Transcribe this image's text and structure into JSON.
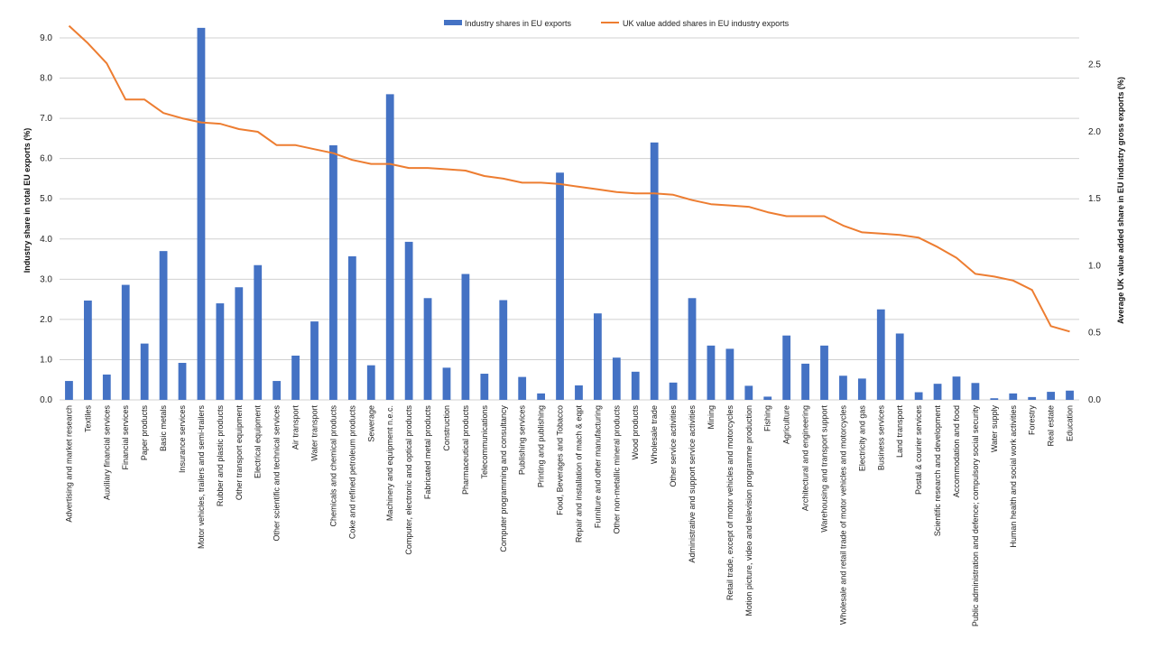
{
  "chart_data": {
    "type": "bar",
    "title": "",
    "ylabel": "Industry share in total EU exports (%)",
    "y2label": "Average UK value added share in EU industry gross exports (%)",
    "ylim": [
      0,
      10
    ],
    "y2lim": [
      0,
      3.0
    ],
    "yticks": [
      "0.0",
      "1.0",
      "2.0",
      "3.0",
      "4.0",
      "5.0",
      "6.0",
      "7.0",
      "8.0",
      "9.0"
    ],
    "y2ticks": [
      "0.0",
      "0.5",
      "1.0",
      "1.5",
      "2.0",
      "2.5"
    ],
    "grid": true,
    "legend_position": "top-center",
    "colors": {
      "bar": "#4472c4",
      "line": "#ed7d31",
      "grid": "#d0d0d0"
    },
    "categories": [
      "Advertising and market research",
      "Textiles",
      "Auxiliary financial services",
      "Financial services",
      "Paper products",
      "Basic metals",
      "Insurance services",
      "Motor vehicles, trailers and semi-trailers",
      "Rubber and plastic products",
      "Other transport equipment",
      "Electrical equipment",
      "Other scientific and technical services",
      "Air transport",
      "Water transport",
      "Chemicals and chemical products",
      "Coke and refined petroleum products",
      "Sewerage",
      "Machinery and equipment n.e.c.",
      "Computer, electronic and optical products",
      "Fabricated metal products",
      "Construction",
      "Pharmaceutical products",
      "Telecommunications",
      "Computer programming and consultancy",
      "Publishing services",
      "Printing and publishing",
      "Food, Beverages and Tobacco",
      "Repair and installation of mach & eqpt",
      "Furniture and other manufacturing",
      "Other non-metallic mineral products",
      "Wood products",
      "Wholesale trade",
      "Other service activities",
      "Administrative and support service activities",
      "Mining",
      "Retail trade, except of motor vehicles and motorcycles",
      "Motion picture, video and television programme production",
      "Fishing",
      "Agriculture",
      "Architectural and engineering",
      "Warehousing and transport support",
      "Wholesale and retail trade of motor vehicles and motorcycles",
      "Electricity and gas",
      "Business services",
      "Land transport",
      "Postal & courier services",
      "Scientific research and development",
      "Accommodation and food",
      "Public administration and defence; compulsory social security",
      "Water supply",
      "Human health and social work activities",
      "Forestry",
      "Real estate",
      "Education"
    ],
    "series": [
      {
        "name": "Industry shares in EU exports",
        "kind": "bar",
        "axis": "left",
        "values": [
          0.47,
          2.47,
          0.63,
          2.86,
          1.4,
          3.7,
          0.92,
          9.25,
          2.4,
          2.8,
          3.35,
          0.47,
          1.1,
          1.95,
          6.33,
          3.57,
          0.86,
          7.6,
          3.93,
          2.53,
          0.8,
          3.13,
          0.65,
          2.48,
          0.57,
          0.16,
          5.65,
          0.36,
          2.15,
          1.05,
          0.7,
          6.4,
          0.43,
          2.53,
          1.35,
          1.27,
          0.35,
          0.08,
          1.6,
          0.9,
          1.35,
          0.6,
          0.53,
          2.25,
          1.65,
          0.19,
          0.4,
          0.58,
          0.42,
          0.04,
          0.16,
          0.07,
          0.2,
          0.23
        ]
      },
      {
        "name": "UK value added shares in EU industry exports",
        "kind": "line",
        "axis": "right",
        "values": [
          2.79,
          2.66,
          2.51,
          2.24,
          2.24,
          2.14,
          2.1,
          2.07,
          2.06,
          2.02,
          2.0,
          1.9,
          1.9,
          1.87,
          1.84,
          1.79,
          1.76,
          1.76,
          1.73,
          1.73,
          1.72,
          1.71,
          1.67,
          1.65,
          1.62,
          1.62,
          1.61,
          1.59,
          1.57,
          1.55,
          1.54,
          1.54,
          1.53,
          1.49,
          1.46,
          1.45,
          1.44,
          1.4,
          1.37,
          1.37,
          1.37,
          1.3,
          1.25,
          1.24,
          1.23,
          1.21,
          1.14,
          1.06,
          0.94,
          0.92,
          0.89,
          0.82,
          0.55,
          0.51
        ]
      }
    ]
  }
}
